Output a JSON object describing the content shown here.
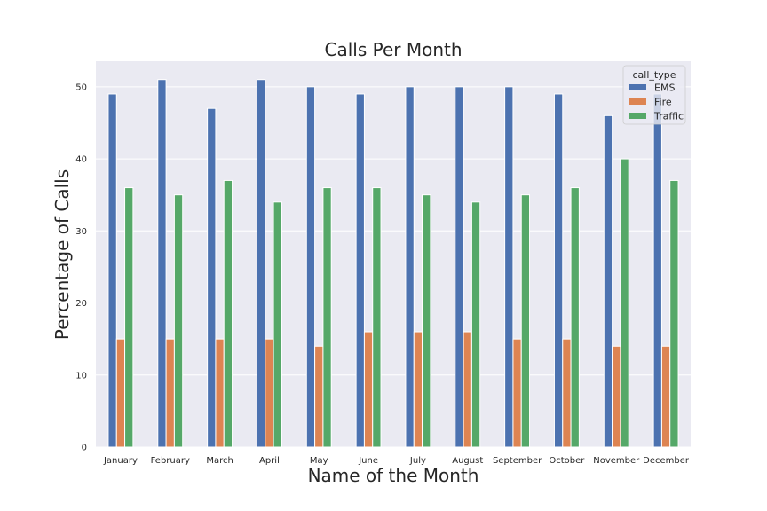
{
  "chart_data": {
    "type": "bar",
    "title": "Calls Per Month",
    "xlabel": "Name of the Month",
    "ylabel": "Percentage of Calls",
    "categories": [
      "January",
      "February",
      "March",
      "April",
      "May",
      "June",
      "July",
      "August",
      "September",
      "October",
      "November",
      "December"
    ],
    "series": [
      {
        "name": "EMS",
        "color": "#4c72b0",
        "values": [
          49,
          51,
          47,
          51,
          50,
          49,
          50,
          50,
          50,
          49,
          46,
          49
        ]
      },
      {
        "name": "Fire",
        "color": "#dd8452",
        "values": [
          15,
          15,
          15,
          15,
          14,
          16,
          16,
          16,
          15,
          15,
          14,
          14
        ]
      },
      {
        "name": "Traffic",
        "color": "#55a868",
        "values": [
          36,
          35,
          37,
          34,
          36,
          36,
          35,
          34,
          35,
          36,
          40,
          37
        ]
      }
    ],
    "ylim": [
      0,
      53.55
    ],
    "yticks": [
      0,
      10,
      20,
      30,
      40,
      50
    ],
    "grid": true,
    "legend": {
      "title": "call_type",
      "placement": "top-right"
    },
    "background_color": "#eaeaf2"
  }
}
